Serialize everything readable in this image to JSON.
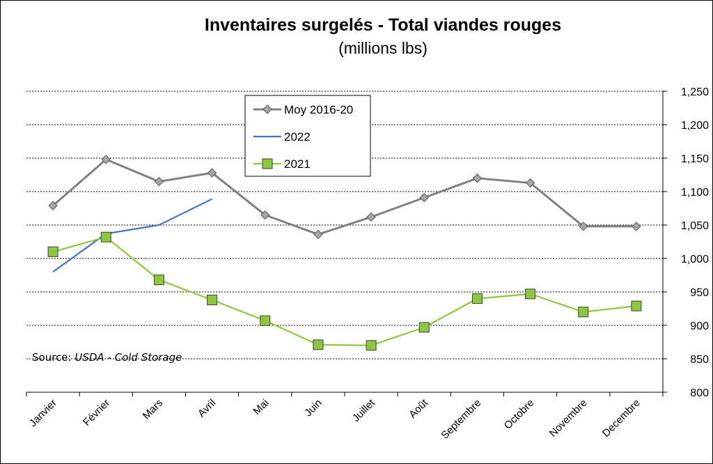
{
  "chart_data": {
    "type": "line",
    "title": "Inventaires surgelés - Total viandes rouges",
    "subtitle": "(millions lbs)",
    "categories": [
      "Janvier",
      "Février",
      "Mars",
      "Avril",
      "Mai",
      "Juin",
      "Juillet",
      "Août",
      "Septembre",
      "Octobre",
      "Novembre",
      "Decembre"
    ],
    "ylim": [
      800,
      1250
    ],
    "yticks": [
      800,
      850,
      900,
      950,
      1000,
      1050,
      1100,
      1150,
      1200,
      1250
    ],
    "ytick_labels": [
      "800",
      "850",
      "900",
      "950",
      "1,000",
      "1,050",
      "1,100",
      "1,150",
      "1,200",
      "1,250"
    ],
    "grid": true,
    "legend_position": "top-left",
    "series": [
      {
        "name": "Moy 2016-20",
        "color": "#808080",
        "marker": "diamond",
        "values": [
          1079,
          1148,
          1115,
          1128,
          1065,
          1036,
          1062,
          1091,
          1120,
          1113,
          1048,
          1048
        ]
      },
      {
        "name": "2022",
        "color": "#4472C4",
        "marker": "none",
        "values": [
          980,
          1037,
          1050,
          1089,
          null,
          null,
          null,
          null,
          null,
          null,
          null,
          null
        ]
      },
      {
        "name": "2021",
        "color": "#8DC63F",
        "marker": "square",
        "values": [
          1010,
          1032,
          968,
          938,
          907,
          871,
          870,
          897,
          940,
          947,
          920,
          929
        ]
      }
    ],
    "source_label": "Source: ",
    "source_text": "USDA - Cold Storage"
  }
}
